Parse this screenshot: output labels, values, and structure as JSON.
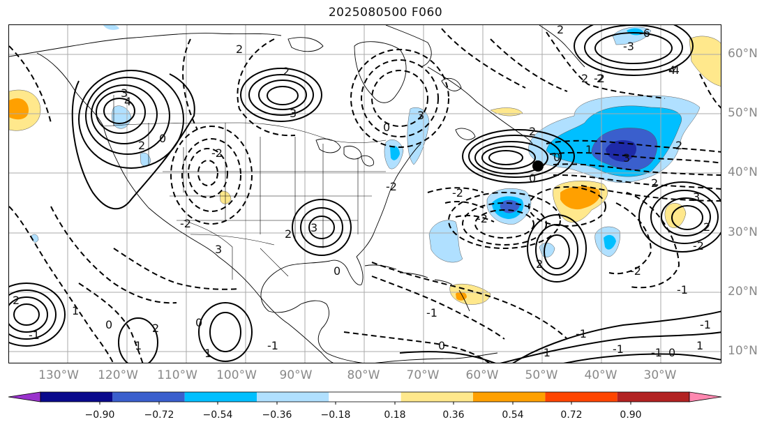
{
  "title": "2025080500 F060",
  "lon_labels": [
    "130°W",
    "120°W",
    "110°W",
    "100°W",
    "90°W",
    "80°W",
    "70°W",
    "60°W",
    "50°W",
    "40°W",
    "30°W"
  ],
  "lat_labels": [
    "60°N",
    "50°N",
    "40°N",
    "30°N",
    "20°N",
    "10°N"
  ],
  "colorbar": {
    "ticks": [
      "−0.90",
      "−0.72",
      "−0.54",
      "−0.36",
      "−0.18",
      "0.18",
      "0.36",
      "0.54",
      "0.72",
      "0.90"
    ],
    "colors": [
      "#9932cc",
      "#0a0a8c",
      "#3a5fcd",
      "#00bfff",
      "#b0e0ff",
      "#ffffff",
      "#ffe88c",
      "#ffa000",
      "#ff4500",
      "#b22222",
      "#ff88b0"
    ]
  },
  "contour_labels": [
    "3",
    "4",
    "2",
    "3",
    "2",
    "2",
    "0",
    "0",
    "2",
    "3",
    "1",
    "2",
    "-2",
    "0",
    "-2",
    "-2",
    "3",
    "4",
    "2",
    "2",
    "2",
    "2",
    "0",
    "2",
    "-2",
    "-1",
    "-3",
    "3",
    "2",
    "3",
    "2",
    "-2",
    "-1",
    "1",
    "0",
    "1",
    "1",
    "-1",
    "0",
    "0",
    "-1",
    "-6",
    "-4",
    "-2",
    "-1",
    "-1",
    "3",
    "-1",
    "0",
    "-2",
    "2",
    "-2",
    "2",
    "-1",
    "-1",
    "1",
    "0"
  ]
}
